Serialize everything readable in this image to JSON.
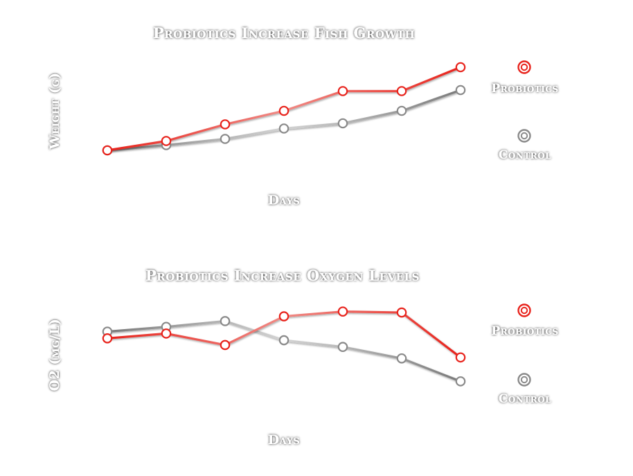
{
  "chart_data": [
    {
      "type": "line",
      "title": "Probiotics Increase Fish Growth",
      "xlabel": "Days",
      "ylabel": "Weight (g)",
      "x": [
        1,
        2,
        3,
        4,
        5,
        6,
        7
      ],
      "ylim": [
        0,
        10
      ],
      "grid": false,
      "legend": "right",
      "series": [
        {
          "name": "Probiotics",
          "color": "#e8231c",
          "values": [
            1.0,
            1.9,
            3.5,
            4.8,
            6.7,
            6.7,
            9.0
          ]
        },
        {
          "name": "Control",
          "color": "#8a8a8a",
          "values": [
            1.0,
            1.5,
            2.1,
            3.1,
            3.6,
            4.8,
            6.8
          ]
        }
      ]
    },
    {
      "type": "line",
      "title": "Probiotics Increase Oxygen Levels",
      "xlabel": "Days",
      "ylabel": "O2 (mg/L)",
      "x": [
        1,
        2,
        3,
        4,
        5,
        6,
        7
      ],
      "ylim": [
        0,
        10
      ],
      "grid": false,
      "legend": "right",
      "series": [
        {
          "name": "Probiotics",
          "color": "#e8231c",
          "values": [
            6.5,
            7.0,
            5.8,
            8.8,
            9.3,
            9.2,
            4.5
          ]
        },
        {
          "name": "Control",
          "color": "#8a8a8a",
          "values": [
            7.2,
            7.7,
            8.3,
            6.3,
            5.6,
            4.4,
            2.0
          ]
        }
      ]
    }
  ]
}
